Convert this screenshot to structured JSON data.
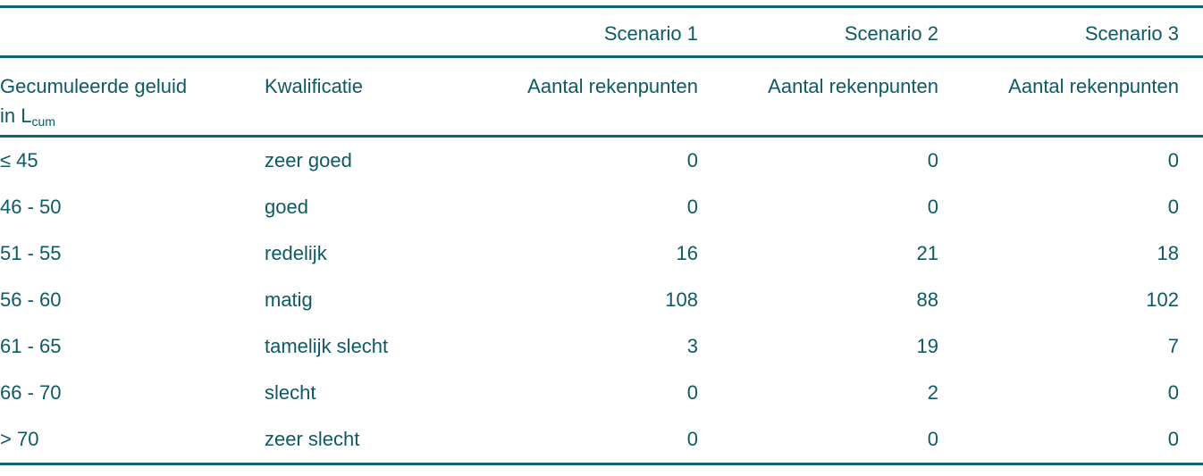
{
  "colors": {
    "text": "#0e5a64",
    "rule": "#0c6670",
    "background": "#ffffff"
  },
  "table": {
    "scenarios": [
      "Scenario 1",
      "Scenario 2",
      "Scenario 3"
    ],
    "headers": {
      "noise_line1": "Gecumuleerde geluid",
      "noise_line2": "in L",
      "noise_subscript": "cum",
      "qualification": "Kwalificatie",
      "points": [
        "Aantal rekenpunten",
        "Aantal rekenpunten",
        "Aantal rekenpunten"
      ]
    },
    "rows": [
      {
        "range": "≤ 45",
        "qualification": "zeer goed",
        "values": [
          "0",
          "0",
          "0"
        ]
      },
      {
        "range": "46 - 50",
        "qualification": "goed",
        "values": [
          "0",
          "0",
          "0"
        ]
      },
      {
        "range": "51 - 55",
        "qualification": "redelijk",
        "values": [
          "16",
          "21",
          "18"
        ]
      },
      {
        "range": "56 - 60",
        "qualification": "matig",
        "values": [
          "108",
          "88",
          "102"
        ]
      },
      {
        "range": "61 - 65",
        "qualification": "tamelijk slecht",
        "values": [
          "3",
          "19",
          "7"
        ]
      },
      {
        "range": "66 - 70",
        "qualification": "slecht",
        "values": [
          "0",
          "2",
          "0"
        ]
      },
      {
        "range": "> 70",
        "qualification": "zeer slecht",
        "values": [
          "0",
          "0",
          "0"
        ]
      }
    ]
  }
}
